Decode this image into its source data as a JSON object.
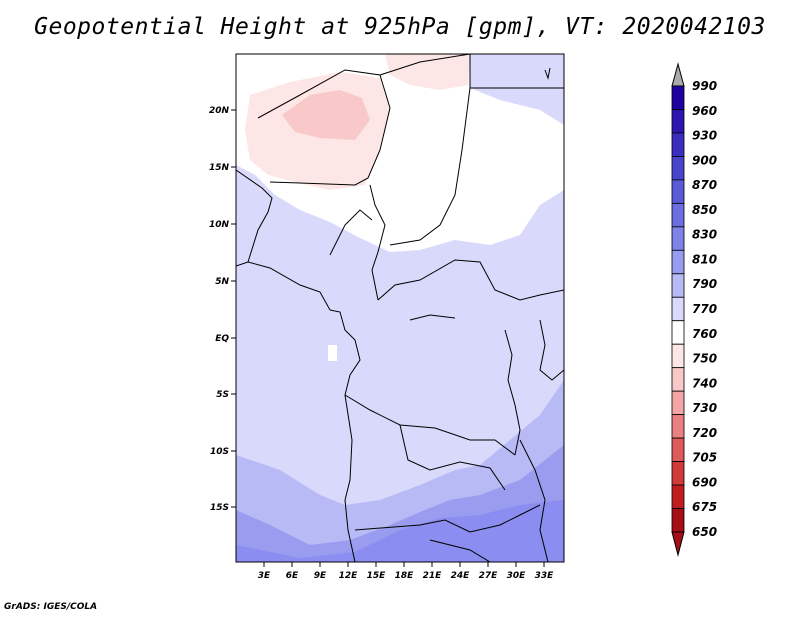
{
  "title": "Geopotential Height at 925hPa [gpm], VT: 2020042103",
  "credit": "GrADS: IGES/COLA",
  "map": {
    "lat_ticks": [
      "20N",
      "15N",
      "10N",
      "5N",
      "EQ",
      "5S",
      "10S",
      "15S"
    ],
    "lon_ticks": [
      "3E",
      "6E",
      "9E",
      "12E",
      "15E",
      "18E",
      "21E",
      "24E",
      "27E",
      "30E",
      "33E"
    ]
  },
  "colorbar": {
    "levels": [
      "990",
      "960",
      "930",
      "900",
      "870",
      "850",
      "830",
      "810",
      "790",
      "770",
      "760",
      "750",
      "740",
      "730",
      "720",
      "705",
      "690",
      "675",
      "650"
    ],
    "colors": [
      "#1e00a0",
      "#2d16b0",
      "#3a2dc0",
      "#4a44cc",
      "#5a5ad6",
      "#6b6ee0",
      "#7f82e8",
      "#9a9cef",
      "#b8baf5",
      "#d8d9fb",
      "#ffffff",
      "#fde6e6",
      "#f9c8c8",
      "#f2a6a6",
      "#ea8080",
      "#df5a5a",
      "#d23a3a",
      "#c01e1e",
      "#a50f15"
    ],
    "over_color": "#aaaaaa",
    "under_color": "#a50f15"
  }
}
